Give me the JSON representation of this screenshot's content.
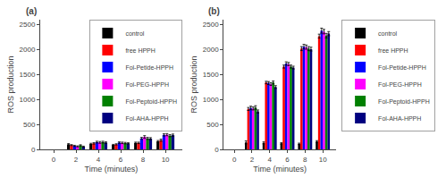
{
  "chart_data": [
    {
      "type": "bar",
      "title": "(a)",
      "x_label": "Time (minutes)",
      "y_label": "ROS production",
      "x": [
        0,
        2,
        4,
        6,
        8,
        10
      ],
      "xlim": [
        -1.2,
        11.5
      ],
      "xticks": [
        0,
        2,
        4,
        6,
        8,
        10
      ],
      "ylim": [
        0,
        2600
      ],
      "yticks": [
        0,
        500,
        1000,
        1500,
        2000,
        2500
      ],
      "grid": false,
      "legend": "upper right",
      "series": [
        {
          "name": "control",
          "color": "#000000",
          "values": [
            0,
            100,
            110,
            90,
            130,
            160
          ],
          "errors": [
            0,
            15,
            12,
            10,
            15,
            18
          ]
        },
        {
          "name": "free HPPH",
          "color": "#ff0000",
          "values": [
            0,
            85,
            120,
            100,
            130,
            185
          ],
          "errors": [
            0,
            10,
            15,
            12,
            15,
            20
          ]
        },
        {
          "name": "Fol-Petide-HPPH",
          "color": "#0000ff",
          "values": [
            0,
            70,
            145,
            135,
            220,
            290
          ],
          "errors": [
            0,
            12,
            18,
            15,
            20,
            22
          ]
        },
        {
          "name": "Fol-PEG-HPPH",
          "color": "#ff00ff",
          "values": [
            0,
            60,
            140,
            130,
            250,
            295
          ],
          "errors": [
            0,
            10,
            18,
            15,
            25,
            22
          ]
        },
        {
          "name": "Fol-Peptoid-HPPH",
          "color": "#008000",
          "values": [
            0,
            80,
            145,
            125,
            220,
            275
          ],
          "errors": [
            0,
            12,
            18,
            15,
            20,
            22
          ]
        },
        {
          "name": "Fol-AHA-HPPH",
          "color": "#000080",
          "values": [
            0,
            55,
            135,
            120,
            215,
            285
          ],
          "errors": [
            0,
            10,
            15,
            12,
            20,
            22
          ]
        }
      ]
    },
    {
      "type": "bar",
      "title": "(b)",
      "x_label": "Time (minutes)",
      "y_label": "ROS production",
      "x": [
        0,
        2,
        4,
        6,
        8,
        10
      ],
      "xlim": [
        -1.2,
        11.5
      ],
      "xticks": [
        0,
        2,
        4,
        6,
        8,
        10
      ],
      "ylim": [
        0,
        2600
      ],
      "yticks": [
        0,
        500,
        1000,
        1500,
        2000,
        2500
      ],
      "grid": false,
      "legend": "right",
      "series": [
        {
          "name": "control",
          "color": "#000000",
          "values": [
            0,
            140,
            130,
            120,
            110,
            155
          ],
          "errors": [
            0,
            30,
            20,
            15,
            15,
            20
          ]
        },
        {
          "name": "free HPPH",
          "color": "#ff0000",
          "values": [
            0,
            810,
            1340,
            1660,
            2020,
            2270
          ],
          "errors": [
            0,
            30,
            25,
            30,
            40,
            40
          ]
        },
        {
          "name": "Fol-Petide-HPPH",
          "color": "#0000ff",
          "values": [
            0,
            830,
            1330,
            1720,
            2060,
            2380
          ],
          "errors": [
            0,
            35,
            30,
            35,
            45,
            50
          ]
        },
        {
          "name": "Fol-PEG-HPPH",
          "color": "#ff00ff",
          "values": [
            0,
            820,
            1310,
            1710,
            2050,
            2360
          ],
          "errors": [
            0,
            30,
            28,
            32,
            42,
            45
          ]
        },
        {
          "name": "Fol-Peptoid-HPPH",
          "color": "#008000",
          "values": [
            0,
            840,
            1340,
            1660,
            2020,
            2280
          ],
          "errors": [
            0,
            35,
            30,
            30,
            40,
            45
          ]
        },
        {
          "name": "Fol-AHA-HPPH",
          "color": "#000080",
          "values": [
            0,
            760,
            1250,
            1640,
            2010,
            2320
          ],
          "errors": [
            0,
            30,
            28,
            28,
            38,
            42
          ]
        }
      ]
    }
  ]
}
